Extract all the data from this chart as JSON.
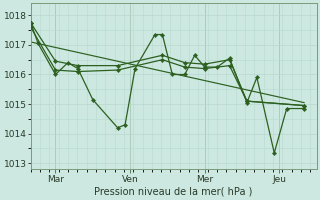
{
  "bg_color": "#cce8e0",
  "grid_color": "#b8d8d0",
  "line_color": "#2d6020",
  "marker_color": "#2d6020",
  "xlabel_text": "Pression niveau de la mer( hPa )",
  "ylim": [
    1012.8,
    1018.4
  ],
  "yticks": [
    1013,
    1014,
    1015,
    1016,
    1017,
    1018
  ],
  "xtick_labels": [
    "Mar",
    "Ven",
    "Mer",
    "Jeu"
  ],
  "xtick_positions": [
    1,
    4,
    7,
    10
  ],
  "xlim": [
    0,
    11.5
  ],
  "series1_x": [
    0.0,
    0.3,
    1.0,
    1.5,
    1.9,
    2.5,
    3.5,
    3.8,
    4.2,
    5.0,
    5.3,
    5.7,
    6.2,
    6.6,
    7.0,
    7.5,
    8.0,
    8.7,
    9.1,
    9.8,
    10.3,
    11.0
  ],
  "series1_y": [
    1017.75,
    1017.05,
    1016.0,
    1016.4,
    1016.2,
    1015.15,
    1014.2,
    1014.3,
    1016.2,
    1017.35,
    1017.35,
    1016.0,
    1016.0,
    1016.65,
    1016.25,
    1016.25,
    1016.55,
    1015.05,
    1015.9,
    1013.35,
    1014.85,
    1014.85
  ],
  "series2_x": [
    0.0,
    1.0,
    1.9,
    3.5,
    5.3,
    6.2,
    7.0,
    8.0,
    8.7,
    11.0
  ],
  "series2_y": [
    1017.75,
    1016.45,
    1016.3,
    1016.3,
    1016.65,
    1016.4,
    1016.35,
    1016.5,
    1015.1,
    1014.95
  ],
  "series3_x": [
    0.0,
    1.0,
    1.9,
    3.5,
    5.3,
    6.2,
    7.0,
    8.0,
    8.7,
    11.0
  ],
  "series3_y": [
    1017.6,
    1016.15,
    1016.1,
    1016.15,
    1016.5,
    1016.25,
    1016.2,
    1016.3,
    1015.1,
    1014.95
  ],
  "trend_x": [
    0.0,
    11.0
  ],
  "trend_y": [
    1017.1,
    1015.05
  ]
}
